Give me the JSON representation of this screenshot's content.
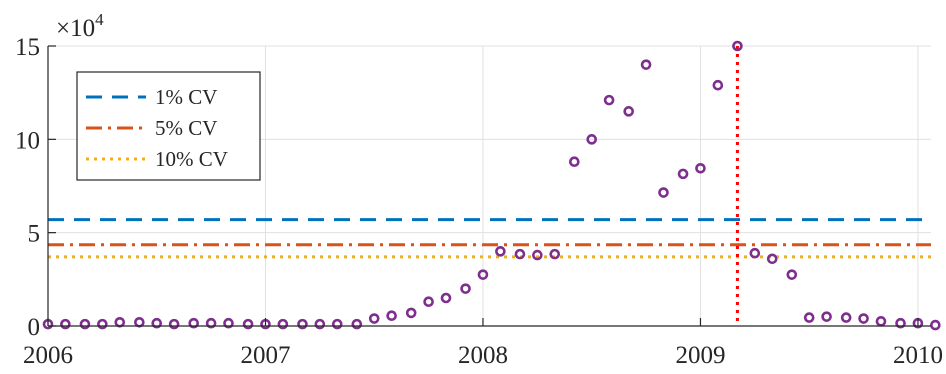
{
  "chart_data": {
    "type": "scatter",
    "title": "",
    "xlabel": "",
    "ylabel": "",
    "y_multiplier_label": "×10",
    "y_multiplier_exponent": "4",
    "xlim": [
      2006.0,
      2010.06
    ],
    "ylim": [
      0,
      15
    ],
    "x_ticks": [
      {
        "value": 2006,
        "label": "2006"
      },
      {
        "value": 2007,
        "label": "2007"
      },
      {
        "value": 2008,
        "label": "2008"
      },
      {
        "value": 2009,
        "label": "2009"
      },
      {
        "value": 2010,
        "label": "2010"
      }
    ],
    "y_ticks": [
      {
        "value": 0,
        "label": "0"
      },
      {
        "value": 5,
        "label": "5"
      },
      {
        "value": 10,
        "label": "10"
      },
      {
        "value": 15,
        "label": "15"
      }
    ],
    "grid": true,
    "legend_position": "top-left",
    "marker_color": "#7E2F8E",
    "points": [
      {
        "x": 2006.0,
        "y": 0.1
      },
      {
        "x": 2006.08,
        "y": 0.1
      },
      {
        "x": 2006.17,
        "y": 0.1
      },
      {
        "x": 2006.25,
        "y": 0.1
      },
      {
        "x": 2006.33,
        "y": 0.2
      },
      {
        "x": 2006.42,
        "y": 0.2
      },
      {
        "x": 2006.5,
        "y": 0.15
      },
      {
        "x": 2006.58,
        "y": 0.1
      },
      {
        "x": 2006.67,
        "y": 0.15
      },
      {
        "x": 2006.75,
        "y": 0.15
      },
      {
        "x": 2006.83,
        "y": 0.15
      },
      {
        "x": 2006.92,
        "y": 0.1
      },
      {
        "x": 2007.0,
        "y": 0.1
      },
      {
        "x": 2007.08,
        "y": 0.1
      },
      {
        "x": 2007.17,
        "y": 0.1
      },
      {
        "x": 2007.25,
        "y": 0.1
      },
      {
        "x": 2007.33,
        "y": 0.1
      },
      {
        "x": 2007.42,
        "y": 0.1
      },
      {
        "x": 2007.5,
        "y": 0.4
      },
      {
        "x": 2007.58,
        "y": 0.55
      },
      {
        "x": 2007.67,
        "y": 0.7
      },
      {
        "x": 2007.75,
        "y": 1.3
      },
      {
        "x": 2007.83,
        "y": 1.5
      },
      {
        "x": 2007.92,
        "y": 2.0
      },
      {
        "x": 2008.0,
        "y": 2.75
      },
      {
        "x": 2008.08,
        "y": 4.0
      },
      {
        "x": 2008.17,
        "y": 3.85
      },
      {
        "x": 2008.25,
        "y": 3.8
      },
      {
        "x": 2008.33,
        "y": 3.85
      },
      {
        "x": 2008.42,
        "y": 8.8
      },
      {
        "x": 2008.5,
        "y": 10.0
      },
      {
        "x": 2008.58,
        "y": 12.1
      },
      {
        "x": 2008.67,
        "y": 11.5
      },
      {
        "x": 2008.75,
        "y": 14.0
      },
      {
        "x": 2008.83,
        "y": 7.15
      },
      {
        "x": 2008.92,
        "y": 8.15
      },
      {
        "x": 2009.0,
        "y": 8.45
      },
      {
        "x": 2009.08,
        "y": 12.9
      },
      {
        "x": 2009.17,
        "y": 15.0
      },
      {
        "x": 2009.25,
        "y": 3.9
      },
      {
        "x": 2009.33,
        "y": 3.6
      },
      {
        "x": 2009.42,
        "y": 2.75
      },
      {
        "x": 2009.5,
        "y": 0.45
      },
      {
        "x": 2009.58,
        "y": 0.5
      },
      {
        "x": 2009.67,
        "y": 0.45
      },
      {
        "x": 2009.75,
        "y": 0.4
      },
      {
        "x": 2009.83,
        "y": 0.25
      },
      {
        "x": 2009.92,
        "y": 0.15
      },
      {
        "x": 2010.0,
        "y": 0.15
      },
      {
        "x": 2010.08,
        "y": 0.05
      }
    ],
    "thresholds": [
      {
        "name": "1% CV",
        "y": 5.7,
        "color": "#0072BD",
        "dash": "dashed"
      },
      {
        "name": "5% CV",
        "y": 4.35,
        "color": "#D95319",
        "dash": "dashdot"
      },
      {
        "name": "10% CV",
        "y": 3.7,
        "color": "#EDB120",
        "dash": "dotted"
      }
    ],
    "vertical_marker": {
      "x": 2009.17,
      "color": "#FF0000",
      "dash": "dotted"
    }
  }
}
